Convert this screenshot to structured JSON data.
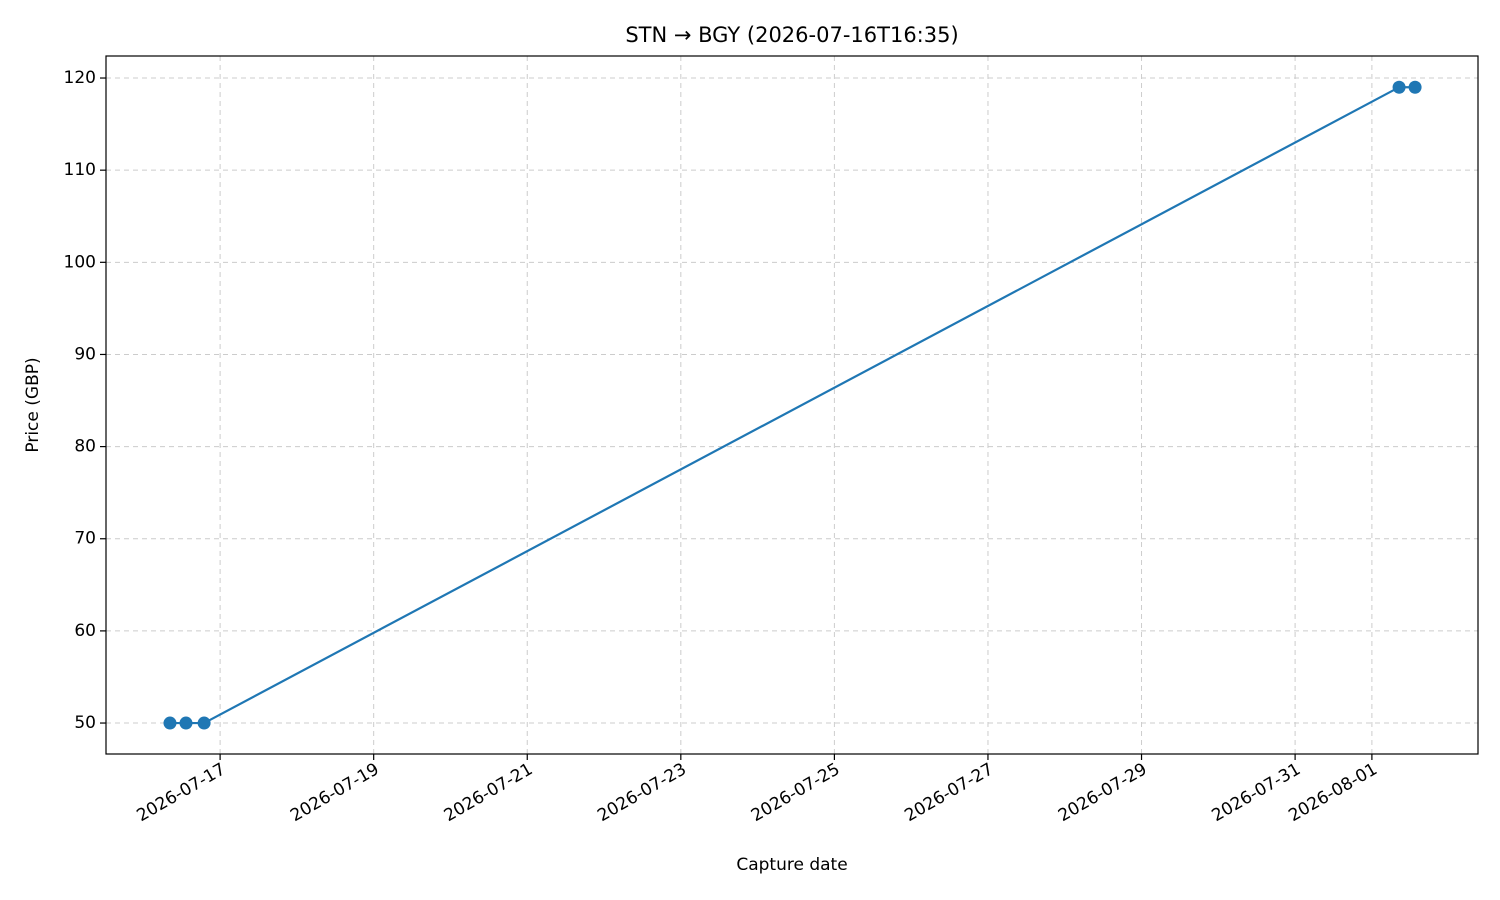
{
  "chart_data": {
    "type": "line",
    "title": "STN → BGY (2026-07-16T16:35)",
    "x_label": "Capture date",
    "y_label": "Price (GBP)",
    "x": [
      "2026-07-16T08:20",
      "2026-07-16T13:20",
      "2026-07-16T19:00",
      "2026-08-01T08:30",
      "2026-08-01T13:30"
    ],
    "series": [
      {
        "name": "price",
        "color": "#1f77b4",
        "values": [
          50,
          50,
          50,
          119,
          119
        ]
      }
    ],
    "xlim": [
      "2026-07-15T12:20",
      "2026-08-02T09:10"
    ],
    "xticks": [
      "2026-07-17",
      "2026-07-19",
      "2026-07-21",
      "2026-07-23",
      "2026-07-25",
      "2026-07-27",
      "2026-07-29",
      "2026-07-31",
      "2026-08-01"
    ],
    "ylim": [
      46.64,
      122.39
    ],
    "yticks": [
      50,
      60,
      70,
      80,
      90,
      100,
      110,
      120
    ],
    "grid": true
  }
}
